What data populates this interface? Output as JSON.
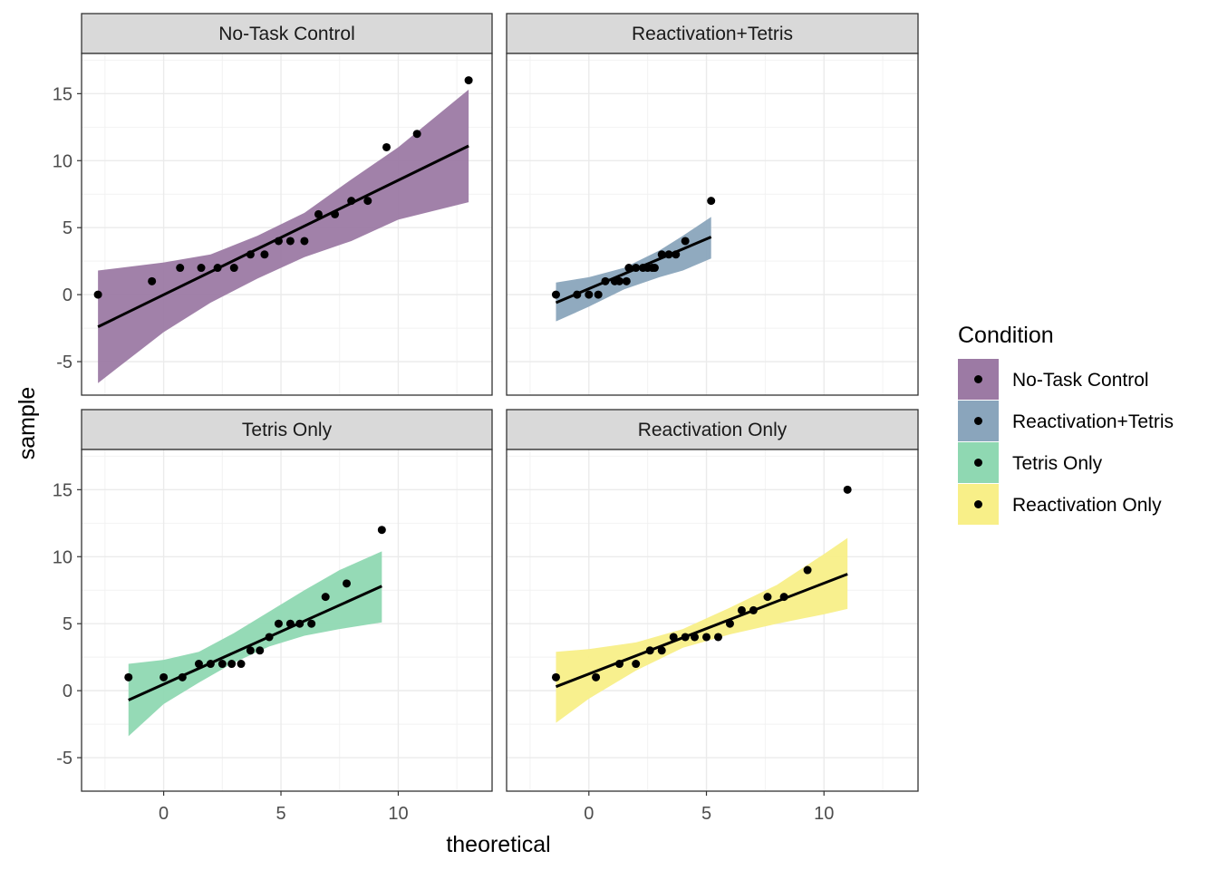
{
  "chart_data": {
    "type": "scatter",
    "xlabel": "theoretical",
    "ylabel": "sample",
    "xlim": [
      -3.5,
      14
    ],
    "ylim": [
      -7.5,
      18
    ],
    "x_ticks": [
      0,
      5,
      10
    ],
    "y_ticks": [
      -5,
      0,
      5,
      10,
      15
    ],
    "grid": true,
    "legend": {
      "title": "Condition",
      "position": "right",
      "entries": [
        "No-Task Control",
        "Reactivation+Tetris",
        "Tetris Only",
        "Reactivation Only"
      ]
    },
    "facets": [
      {
        "label": "No-Task Control",
        "color": "#9c7aa4",
        "points": [
          [
            -2.8,
            0
          ],
          [
            -0.5,
            1
          ],
          [
            0.7,
            2
          ],
          [
            1.6,
            2
          ],
          [
            2.3,
            2
          ],
          [
            3.0,
            2
          ],
          [
            3.7,
            3
          ],
          [
            4.3,
            3
          ],
          [
            4.9,
            4
          ],
          [
            5.4,
            4
          ],
          [
            6.0,
            4
          ],
          [
            6.6,
            6
          ],
          [
            7.3,
            6
          ],
          [
            8.0,
            7
          ],
          [
            8.7,
            7
          ],
          [
            9.5,
            11
          ],
          [
            10.8,
            12
          ],
          [
            13.0,
            16
          ]
        ],
        "fit": {
          "x0": -2.8,
          "y0": -2.4,
          "x1": 13.0,
          "y1": 11.1
        },
        "band": [
          [
            -2.8,
            -6.6,
            1.8
          ],
          [
            0,
            -2.8,
            2.4
          ],
          [
            2,
            -0.6,
            3.0
          ],
          [
            4,
            1.2,
            4.4
          ],
          [
            6,
            2.8,
            6.1
          ],
          [
            8,
            4.0,
            8.6
          ],
          [
            10,
            5.6,
            11.0
          ],
          [
            13,
            6.9,
            15.3
          ]
        ]
      },
      {
        "label": "Reactivation+Tetris",
        "color": "#8aa5bc",
        "points": [
          [
            -1.4,
            0
          ],
          [
            -0.5,
            0
          ],
          [
            0,
            0
          ],
          [
            0.4,
            0
          ],
          [
            0.7,
            1
          ],
          [
            1.1,
            1
          ],
          [
            1.3,
            1
          ],
          [
            1.6,
            1
          ],
          [
            1.7,
            2
          ],
          [
            2.0,
            2
          ],
          [
            2.3,
            2
          ],
          [
            2.5,
            2
          ],
          [
            2.7,
            2
          ],
          [
            2.8,
            2
          ],
          [
            3.1,
            3
          ],
          [
            3.4,
            3
          ],
          [
            3.7,
            3
          ],
          [
            4.1,
            4
          ],
          [
            5.2,
            7
          ]
        ],
        "fit": {
          "x0": -1.4,
          "y0": -0.6,
          "x1": 5.2,
          "y1": 4.3
        },
        "band": [
          [
            -1.4,
            -2.0,
            0.9
          ],
          [
            0,
            -0.9,
            1.3
          ],
          [
            1.5,
            0.4,
            2.0
          ],
          [
            3,
            1.3,
            3.3
          ],
          [
            4,
            1.8,
            4.4
          ],
          [
            5.2,
            2.7,
            5.8
          ]
        ]
      },
      {
        "label": "Tetris Only",
        "color": "#8fd8b2",
        "points": [
          [
            -1.5,
            1
          ],
          [
            0,
            1
          ],
          [
            0.8,
            1
          ],
          [
            1.5,
            2
          ],
          [
            2.0,
            2
          ],
          [
            2.5,
            2
          ],
          [
            2.9,
            2
          ],
          [
            3.3,
            2
          ],
          [
            3.7,
            3
          ],
          [
            4.1,
            3
          ],
          [
            4.5,
            4
          ],
          [
            4.9,
            5
          ],
          [
            5.4,
            5
          ],
          [
            5.8,
            5
          ],
          [
            6.3,
            5
          ],
          [
            6.9,
            7
          ],
          [
            7.8,
            8
          ],
          [
            9.3,
            12
          ]
        ],
        "fit": {
          "x0": -1.5,
          "y0": -0.7,
          "x1": 9.3,
          "y1": 7.8
        },
        "band": [
          [
            -1.5,
            -3.4,
            2.0
          ],
          [
            0,
            -1.0,
            2.3
          ],
          [
            1.5,
            0.6,
            2.9
          ],
          [
            3,
            2.1,
            4.3
          ],
          [
            4.5,
            3.3,
            5.9
          ],
          [
            6,
            4.1,
            7.5
          ],
          [
            7.5,
            4.6,
            9.0
          ],
          [
            9.3,
            5.1,
            10.4
          ]
        ]
      },
      {
        "label": "Reactivation Only",
        "color": "#f8ef88",
        "points": [
          [
            -1.4,
            1
          ],
          [
            0.3,
            1
          ],
          [
            1.3,
            2
          ],
          [
            2.0,
            2
          ],
          [
            2.6,
            3
          ],
          [
            3.1,
            3
          ],
          [
            3.6,
            4
          ],
          [
            4.1,
            4
          ],
          [
            4.5,
            4
          ],
          [
            5.0,
            4
          ],
          [
            5.5,
            4
          ],
          [
            6.0,
            5
          ],
          [
            6.5,
            6
          ],
          [
            7.0,
            6
          ],
          [
            7.6,
            7
          ],
          [
            8.3,
            7
          ],
          [
            9.3,
            9
          ],
          [
            11.0,
            15
          ]
        ],
        "fit": {
          "x0": -1.4,
          "y0": 0.3,
          "x1": 11.0,
          "y1": 8.7
        },
        "band": [
          [
            -1.4,
            -2.4,
            2.9
          ],
          [
            0,
            -0.6,
            3.1
          ],
          [
            2,
            1.5,
            3.6
          ],
          [
            4,
            3.2,
            4.6
          ],
          [
            6,
            4.2,
            6.2
          ],
          [
            8,
            5.0,
            7.9
          ],
          [
            10,
            5.7,
            10.2
          ],
          [
            11,
            6.1,
            11.4
          ]
        ]
      }
    ]
  }
}
